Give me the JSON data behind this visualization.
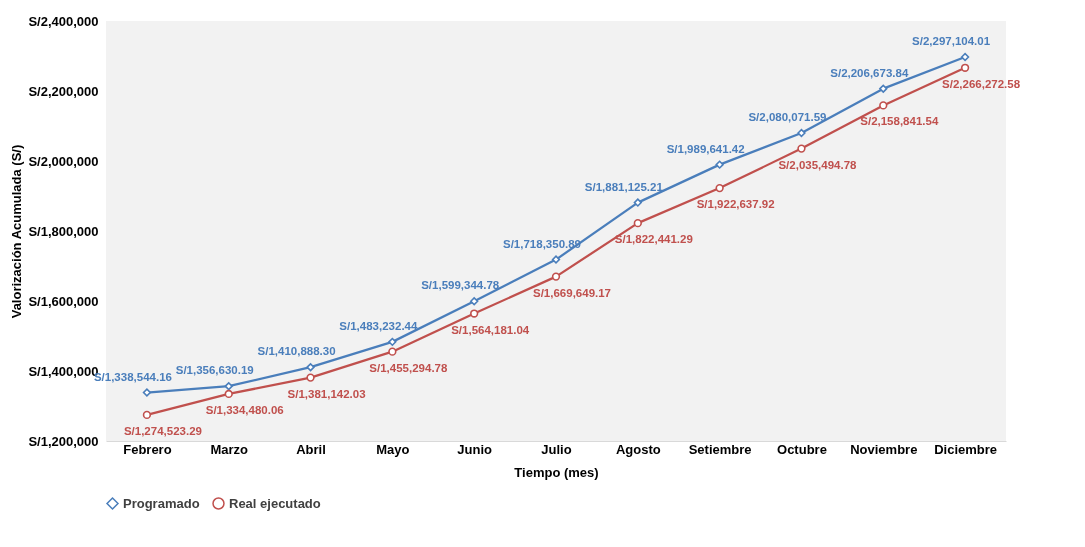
{
  "chart_data": {
    "type": "line",
    "xlabel": "Tiempo (mes)",
    "ylabel": "Valorización Acumulada (S/)",
    "categories": [
      "Febrero",
      "Marzo",
      "Abril",
      "Mayo",
      "Junio",
      "Julio",
      "Agosto",
      "Setiembre",
      "Octubre",
      "Noviembre",
      "Diciembre"
    ],
    "series": [
      {
        "name": "Programado",
        "color": "#4a7ebb",
        "marker": "diamond",
        "values": [
          1338544.16,
          1356630.19,
          1410888.3,
          1483232.44,
          1599344.78,
          1718350.89,
          1881125.21,
          1989641.42,
          2080071.59,
          2206673.84,
          2297104.01
        ],
        "value_labels": [
          "S/1,338,544.16",
          "S/1,356,630.19",
          "S/1,410,888.30",
          "S/1,483,232.44",
          "S/1,599,344.78",
          "S/1,718,350.89",
          "S/1,881,125.21",
          "S/1,989,641.42",
          "S/2,080,071.59",
          "S/2,206,673.84",
          "S/2,297,104.01"
        ]
      },
      {
        "name": "Real ejecutado",
        "color": "#c0504d",
        "marker": "circle",
        "values": [
          1274523.29,
          1334480.06,
          1381142.03,
          1455294.78,
          1564181.04,
          1669649.17,
          1822441.29,
          1922637.92,
          2035494.78,
          2158841.54,
          2266272.58
        ],
        "value_labels": [
          "S/1,274,523.29",
          "S/1,334,480.06",
          "S/1,381,142.03",
          "S/1,455,294.78",
          "S/1,564,181.04",
          "S/1,669,649.17",
          "S/1,822,441.29",
          "S/1,922,637.92",
          "S/2,035,494.78",
          "S/2,158,841.54",
          "S/2,266,272.58"
        ]
      }
    ],
    "ylim": [
      1200000,
      2400000
    ],
    "yticks": [
      {
        "value": 1200000,
        "label": "S/1,200,000"
      },
      {
        "value": 1400000,
        "label": "S/1,400,000"
      },
      {
        "value": 1600000,
        "label": "S/1,600,000"
      },
      {
        "value": 1800000,
        "label": "S/1,800,000"
      },
      {
        "value": 2000000,
        "label": "S/2,000,000"
      },
      {
        "value": 2200000,
        "label": "S/2,200,000"
      },
      {
        "value": 2400000,
        "label": "S/2,400,000"
      }
    ],
    "legend": "bottom",
    "line_style": "solid"
  }
}
